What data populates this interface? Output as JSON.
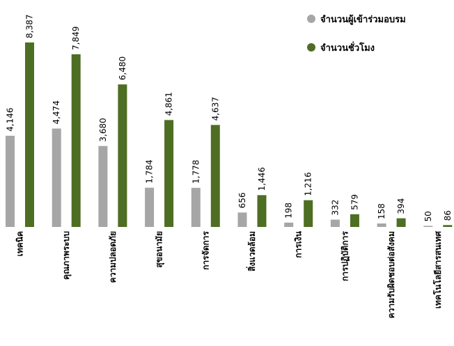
{
  "chart_data": {
    "type": "bar",
    "categories": [
      "เทคนิค",
      "คุณภาพระบบ",
      "ความปลอดภัย",
      "สุขอนามัย",
      "การจัดการ",
      "สิ่งแวดล้อม",
      "การเงิน",
      "การปฏิบัติการ",
      "ความรับผิดชอบต่อสังคม",
      "เทคโนโลยีสารสนเทศ"
    ],
    "series": [
      {
        "name": "จำนวนผู้เข้าร่วมอบรม",
        "color": "#a6a6a6",
        "values": [
          4146,
          4474,
          3680,
          1784,
          1778,
          656,
          198,
          332,
          158,
          50
        ],
        "value_labels": [
          "4,146",
          "4,474",
          "3,680",
          "1,784",
          "1,778",
          "656",
          "198",
          "332",
          "158",
          "50"
        ]
      },
      {
        "name": "จำนวนชั่วโมง",
        "color": "#4e6e23",
        "values": [
          8387,
          7849,
          6480,
          4861,
          4637,
          1446,
          1216,
          579,
          394,
          86
        ],
        "value_labels": [
          "8,387",
          "7,849",
          "6,480",
          "4,861",
          "4,637",
          "1,446",
          "1,216",
          "579",
          "394",
          "86"
        ]
      }
    ],
    "legend": "top-right"
  }
}
